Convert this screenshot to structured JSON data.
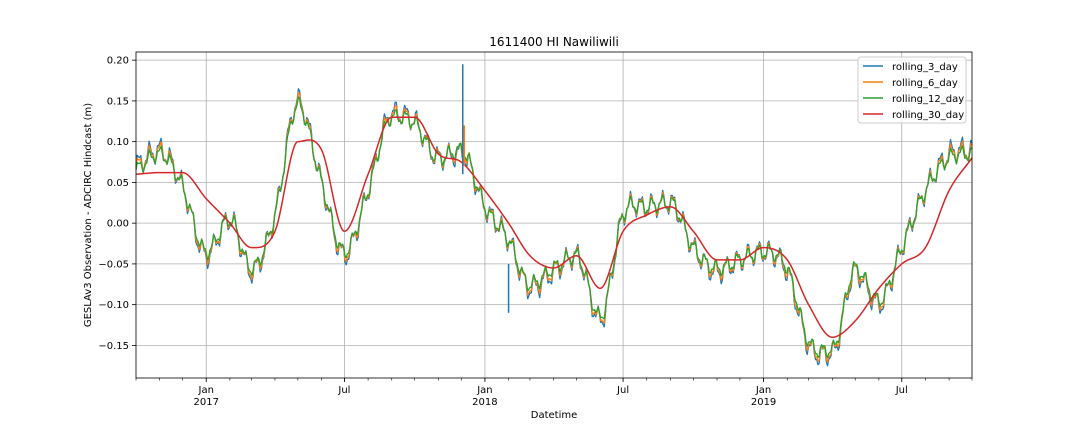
{
  "chart_data": {
    "type": "line",
    "title": "1611400 HI Nawiliwili",
    "xlabel": "Datetime",
    "ylabel": "GESLAv3 Observation - ADCIRC Hindcast (m)",
    "ylim": [
      -0.19,
      0.21
    ],
    "xlim": [
      "2016-10-01",
      "2019-10-01"
    ],
    "yticks": [
      -0.15,
      -0.1,
      -0.05,
      0.0,
      0.05,
      0.1,
      0.15,
      0.2
    ],
    "ytick_labels": [
      "−0.15",
      "−0.10",
      "−0.05",
      "0.00",
      "0.05",
      "0.10",
      "0.15",
      "0.20"
    ],
    "xticks_major": [
      {
        "date": "2017-01-01",
        "label": "Jan",
        "sublabel": "2017"
      },
      {
        "date": "2017-07-01",
        "label": "Jul",
        "sublabel": ""
      },
      {
        "date": "2018-01-01",
        "label": "Jan",
        "sublabel": "2018"
      },
      {
        "date": "2018-07-01",
        "label": "Jul",
        "sublabel": ""
      },
      {
        "date": "2019-01-01",
        "label": "Jan",
        "sublabel": "2019"
      },
      {
        "date": "2019-07-01",
        "label": "Jul",
        "sublabel": ""
      }
    ],
    "grid": true,
    "legend_position": "upper right",
    "keypoint_dates": [
      "2016-10-01",
      "2016-11-01",
      "2016-12-01",
      "2017-01-01",
      "2017-02-01",
      "2017-03-01",
      "2017-04-01",
      "2017-05-01",
      "2017-06-01",
      "2017-07-01",
      "2017-08-01",
      "2017-09-01",
      "2017-10-01",
      "2017-11-01",
      "2017-12-01",
      "2018-01-01",
      "2018-02-01",
      "2018-03-01",
      "2018-04-01",
      "2018-05-01",
      "2018-06-01",
      "2018-07-01",
      "2018-08-01",
      "2018-09-01",
      "2018-10-01",
      "2018-11-01",
      "2018-12-01",
      "2019-01-01",
      "2019-02-01",
      "2019-03-01",
      "2019-04-01",
      "2019-05-01",
      "2019-06-01",
      "2019-07-01",
      "2019-08-01",
      "2019-09-01",
      "2019-10-01"
    ],
    "series": [
      {
        "name": "rolling_3_day",
        "color": "#1f77b4",
        "values": [
          0.07,
          0.09,
          0.045,
          -0.04,
          0.005,
          -0.06,
          0.01,
          0.15,
          0.05,
          -0.04,
          0.04,
          0.135,
          0.125,
          0.08,
          0.085,
          0.02,
          -0.02,
          -0.08,
          -0.06,
          -0.04,
          -0.12,
          0.01,
          0.02,
          0.025,
          -0.03,
          -0.06,
          -0.045,
          -0.035,
          -0.06,
          -0.15,
          -0.16,
          -0.06,
          -0.1,
          -0.03,
          0.04,
          0.085,
          0.09
        ]
      },
      {
        "name": "rolling_6_day",
        "color": "#ff7f0e",
        "values": [
          0.068,
          0.088,
          0.045,
          -0.038,
          0.005,
          -0.058,
          0.01,
          0.148,
          0.05,
          -0.038,
          0.04,
          0.133,
          0.124,
          0.08,
          0.088,
          0.02,
          -0.02,
          -0.078,
          -0.058,
          -0.04,
          -0.118,
          0.01,
          0.02,
          0.025,
          -0.03,
          -0.058,
          -0.045,
          -0.035,
          -0.058,
          -0.148,
          -0.158,
          -0.058,
          -0.098,
          -0.03,
          0.04,
          0.083,
          0.088
        ]
      },
      {
        "name": "rolling_12_day",
        "color": "#2ca02c",
        "values": [
          0.065,
          0.085,
          0.045,
          -0.035,
          0.005,
          -0.055,
          0.01,
          0.145,
          0.05,
          -0.035,
          0.04,
          0.13,
          0.123,
          0.08,
          0.09,
          0.02,
          -0.02,
          -0.075,
          -0.055,
          -0.04,
          -0.115,
          0.01,
          0.02,
          0.025,
          -0.03,
          -0.055,
          -0.045,
          -0.035,
          -0.055,
          -0.145,
          -0.155,
          -0.055,
          -0.095,
          -0.03,
          0.04,
          0.08,
          0.085
        ]
      },
      {
        "name": "rolling_30_day",
        "color": "#d62728",
        "values": [
          0.06,
          0.062,
          0.062,
          0.03,
          0.0,
          -0.03,
          -0.01,
          0.1,
          0.09,
          -0.01,
          0.06,
          0.13,
          0.13,
          0.085,
          0.075,
          0.04,
          0.0,
          -0.04,
          -0.055,
          -0.04,
          -0.08,
          -0.01,
          0.01,
          0.02,
          -0.01,
          -0.045,
          -0.045,
          -0.03,
          -0.045,
          -0.1,
          -0.14,
          -0.12,
          -0.08,
          -0.05,
          -0.03,
          0.04,
          0.08
        ]
      }
    ]
  }
}
